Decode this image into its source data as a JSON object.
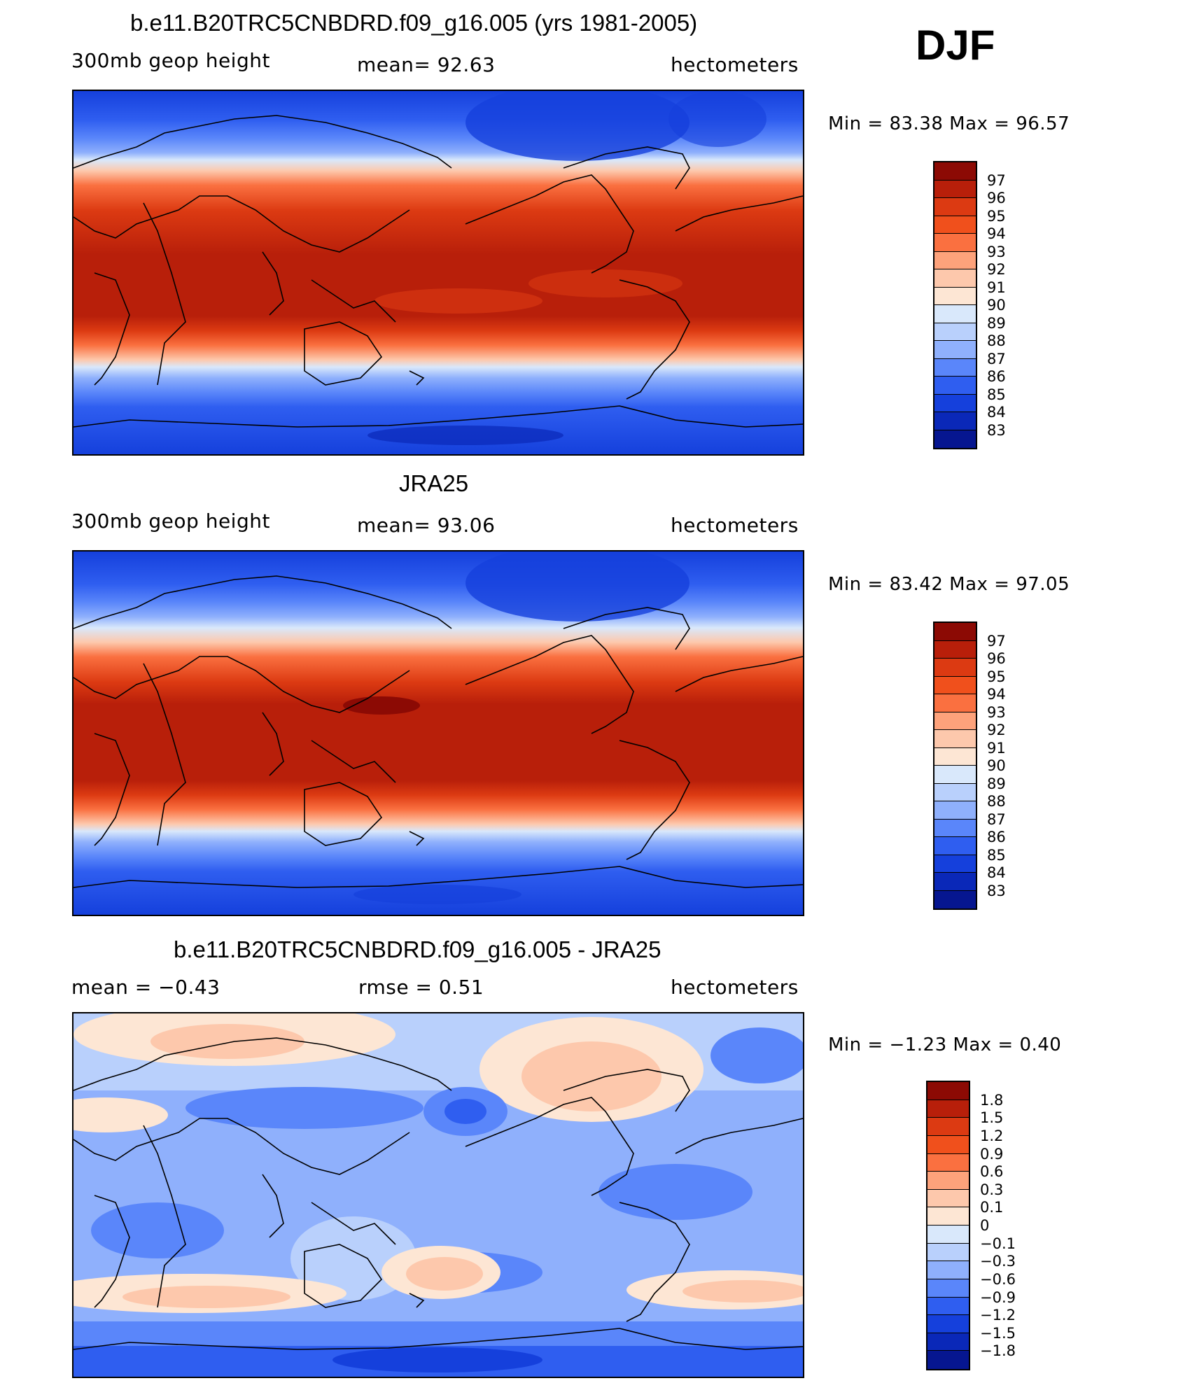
{
  "season": "DJF",
  "panels": [
    {
      "title": "b.e11.B20TRC5CNBDRD.f09_g16.005 (yrs 1981-2005)",
      "left_label": "300mb  geop  height",
      "center_label": "mean=   92.63",
      "units": "hectometers",
      "min_max": "Min  =    83.38  Max  =    96.57",
      "map_data": {
        "field": "300mb geop height",
        "mean": 92.63,
        "min": 83.38,
        "max": 96.57,
        "units": "hectometers"
      },
      "colorbar": {
        "levels": [
          "97",
          "96",
          "95",
          "94",
          "93",
          "92",
          "91",
          "90",
          "89",
          "88",
          "87",
          "86",
          "85",
          "84",
          "83"
        ],
        "colors": [
          "#8c0a04",
          "#b81f0a",
          "#dc3a12",
          "#f0501c",
          "#fa7040",
          "#fda27b",
          "#fdc8ac",
          "#fde6d4",
          "#d9e8fb",
          "#b9d0fc",
          "#8fb0fc",
          "#5a86fa",
          "#2f5ef0",
          "#1540dc",
          "#0a28b8",
          "#061690"
        ]
      }
    },
    {
      "title": "JRA25",
      "left_label": "300mb  geop  height",
      "center_label": "mean=   93.06",
      "units": "hectometers",
      "min_max": "Min  =    83.42  Max  =    97.05",
      "map_data": {
        "field": "300mb geop height",
        "mean": 93.06,
        "min": 83.42,
        "max": 97.05,
        "units": "hectometers"
      },
      "colorbar": {
        "levels": [
          "97",
          "96",
          "95",
          "94",
          "93",
          "92",
          "91",
          "90",
          "89",
          "88",
          "87",
          "86",
          "85",
          "84",
          "83"
        ],
        "colors": [
          "#8c0a04",
          "#b81f0a",
          "#dc3a12",
          "#f0501c",
          "#fa7040",
          "#fda27b",
          "#fdc8ac",
          "#fde6d4",
          "#d9e8fb",
          "#b9d0fc",
          "#8fb0fc",
          "#5a86fa",
          "#2f5ef0",
          "#1540dc",
          "#0a28b8",
          "#061690"
        ]
      }
    },
    {
      "title": "b.e11.B20TRC5CNBDRD.f09_g16.005 - JRA25",
      "left_label": "mean  =    −0.43",
      "center_label": "rmse  =     0.51",
      "units": "hectometers",
      "min_max": "Min  =   −1.23  Max  =     0.40",
      "map_data": {
        "field": "difference",
        "mean": -0.43,
        "rmse": 0.51,
        "min": -1.23,
        "max": 0.4,
        "units": "hectometers"
      },
      "colorbar": {
        "levels": [
          "1.8",
          "1.5",
          "1.2",
          "0.9",
          "0.6",
          "0.3",
          "0.1",
          "0",
          "−0.1",
          "−0.3",
          "−0.6",
          "−0.9",
          "−1.2",
          "−1.5",
          "−1.8"
        ],
        "colors": [
          "#8c0a04",
          "#b81f0a",
          "#dc3a12",
          "#f0501c",
          "#fa7040",
          "#fda27b",
          "#fdc8ac",
          "#fde6d4",
          "#d9e8fb",
          "#b9d0fc",
          "#8fb0fc",
          "#5a86fa",
          "#2f5ef0",
          "#1540dc",
          "#0a28b8",
          "#061690"
        ]
      }
    }
  ]
}
